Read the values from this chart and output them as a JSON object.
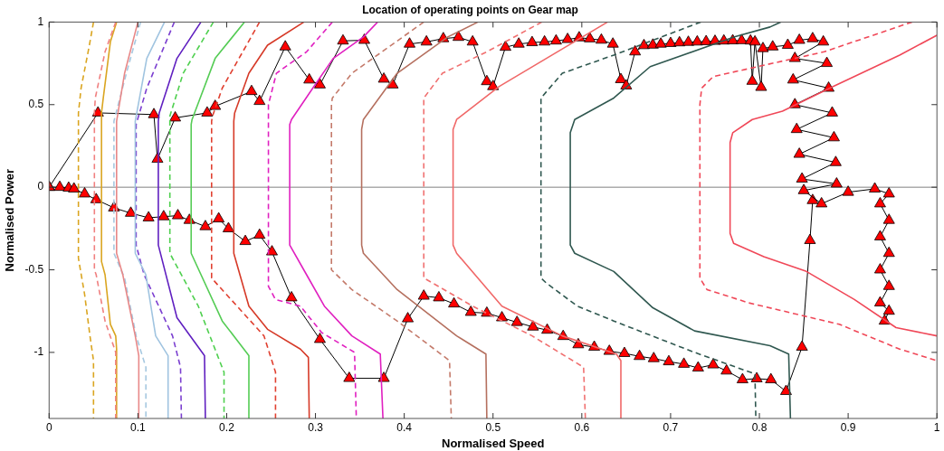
{
  "chart_data": {
    "type": "line",
    "title": "Location of operating points on Gear map",
    "xlabel": "Normalised Speed",
    "ylabel": "Normalised Power",
    "xlim": [
      0,
      1
    ],
    "ylim": [
      -1.4,
      1
    ],
    "xticks": [
      0,
      0.1,
      0.2,
      0.3,
      0.4,
      0.5,
      0.6,
      0.7,
      0.8,
      0.9,
      1
    ],
    "yticks": [
      -1,
      -0.5,
      0,
      0.5,
      1
    ],
    "grid": false,
    "legend": false,
    "marker": "none",
    "ref_lines": [
      {
        "axis": "y",
        "value": 0,
        "color": "#808080"
      }
    ],
    "series": [
      {
        "color": "#daa520",
        "line_style": "dashed",
        "x": [
          0.05,
          0.045,
          0.036,
          0.033,
          0.033,
          0.04,
          0.046,
          0.05,
          0.05
        ],
        "values": [
          1,
          0.85,
          0.6,
          0.45,
          -0.43,
          -0.65,
          -0.9,
          -1.05,
          -1.4
        ]
      },
      {
        "color": "#f08080",
        "line_style": "dashed",
        "x": [
          0.075,
          0.063,
          0.052,
          0.051,
          0.051,
          0.053,
          0.063,
          0.075,
          0.075
        ],
        "values": [
          1,
          0.82,
          0.54,
          0.45,
          -0.5,
          -0.53,
          -0.81,
          -1.0,
          -1.4
        ]
      },
      {
        "color": "#daa520",
        "line_style": "solid",
        "x": [
          0.076,
          0.069,
          0.061,
          0.059,
          0.059,
          0.063,
          0.069,
          0.075,
          0.076,
          0.076
        ],
        "values": [
          1,
          0.88,
          0.54,
          0.45,
          -0.45,
          -0.53,
          -0.83,
          -0.9,
          -0.98,
          -1.4
        ]
      },
      {
        "color": "#e88888",
        "line_style": "solid",
        "x": [
          0.1,
          0.085,
          0.076,
          0.076,
          0.083,
          0.097,
          0.101,
          0.101
        ],
        "values": [
          1,
          0.69,
          0.4,
          -0.4,
          -0.53,
          -0.9,
          -1.02,
          -1.4
        ]
      },
      {
        "color": "#a6c8e0",
        "line_style": "dashed",
        "x": [
          0.103,
          0.087,
          0.073,
          0.073,
          0.085,
          0.098,
          0.109,
          0.109
        ],
        "values": [
          1,
          0.69,
          0.4,
          -0.4,
          -0.55,
          -0.9,
          -1.09,
          -1.4
        ]
      },
      {
        "color": "#a0c4e0",
        "line_style": "solid",
        "x": [
          0.13,
          0.11,
          0.097,
          0.097,
          0.109,
          0.12,
          0.134,
          0.134
        ],
        "values": [
          1,
          0.78,
          0.4,
          -0.4,
          -0.53,
          -0.9,
          -1.02,
          -1.4
        ]
      },
      {
        "color": "#7b3fd0",
        "line_style": "dashed",
        "x": [
          0.141,
          0.11,
          0.098,
          0.098,
          0.107,
          0.139,
          0.148,
          0.149
        ],
        "values": [
          1,
          0.6,
          0.38,
          -0.35,
          -0.53,
          -0.9,
          -1.09,
          -1.4
        ]
      },
      {
        "color": "#6020c0",
        "line_style": "solid",
        "x": [
          0.171,
          0.144,
          0.124,
          0.123,
          0.123,
          0.144,
          0.175,
          0.176
        ],
        "values": [
          1,
          0.78,
          0.45,
          0.4,
          -0.35,
          -0.79,
          -1.02,
          -1.4
        ]
      },
      {
        "color": "#4fd04f",
        "line_style": "dashed",
        "x": [
          0.185,
          0.151,
          0.136,
          0.136,
          0.168,
          0.197,
          0.197
        ],
        "values": [
          1,
          0.69,
          0.43,
          -0.4,
          -0.72,
          -1.12,
          -1.4
        ]
      },
      {
        "color": "#55cc55",
        "line_style": "solid",
        "x": [
          0.22,
          0.187,
          0.161,
          0.16,
          0.16,
          0.195,
          0.225,
          0.225
        ],
        "values": [
          1,
          0.78,
          0.41,
          0.38,
          -0.4,
          -0.81,
          -1.02,
          -1.4
        ]
      },
      {
        "color": "#e04030",
        "line_style": "dashed",
        "x": [
          0.237,
          0.195,
          0.184,
          0.183,
          0.183,
          0.242,
          0.255,
          0.255
        ],
        "values": [
          1,
          0.6,
          0.43,
          0.4,
          -0.55,
          -0.9,
          -1.12,
          -1.4
        ]
      },
      {
        "color": "#d63a28",
        "line_style": "solid",
        "x": [
          0.287,
          0.246,
          0.225,
          0.209,
          0.208,
          0.208,
          0.225,
          0.246,
          0.283,
          0.292,
          0.293
        ],
        "values": [
          1,
          0.86,
          0.69,
          0.45,
          0.4,
          -0.4,
          -0.72,
          -0.86,
          -0.98,
          -1.03,
          -1.4
        ]
      },
      {
        "color": "#e020c0",
        "line_style": "dashed",
        "x": [
          0.319,
          0.29,
          0.256,
          0.247,
          0.247,
          0.255,
          0.283,
          0.307,
          0.344,
          0.346
        ],
        "values": [
          1,
          0.82,
          0.69,
          0.5,
          -0.6,
          -0.68,
          -0.72,
          -0.88,
          -1.0,
          -1.4
        ]
      },
      {
        "color": "#e020c0",
        "line_style": "solid",
        "x": [
          0.37,
          0.354,
          0.32,
          0.297,
          0.273,
          0.271,
          0.271,
          0.29,
          0.31,
          0.341,
          0.373,
          0.376
        ],
        "values": [
          1,
          0.91,
          0.78,
          0.6,
          0.41,
          0.38,
          -0.35,
          -0.53,
          -0.72,
          -0.9,
          -1.01,
          -1.4
        ]
      },
      {
        "color": "#c47a6a",
        "line_style": "dashed",
        "x": [
          0.422,
          0.341,
          0.319,
          0.318,
          0.318,
          0.341,
          0.392,
          0.451,
          0.453
        ],
        "values": [
          1,
          0.69,
          0.54,
          0.5,
          -0.5,
          -0.62,
          -0.81,
          -1.05,
          -1.4
        ]
      },
      {
        "color": "#b5705f",
        "line_style": "solid",
        "x": [
          0.483,
          0.449,
          0.392,
          0.354,
          0.352,
          0.352,
          0.354,
          0.392,
          0.459,
          0.492,
          0.493
        ],
        "values": [
          1,
          0.91,
          0.69,
          0.41,
          0.35,
          -0.35,
          -0.4,
          -0.62,
          -0.9,
          -1.01,
          -1.4
        ]
      },
      {
        "color": "#f07070",
        "line_style": "dashed",
        "x": [
          0.555,
          0.493,
          0.443,
          0.422,
          0.422,
          0.432,
          0.477,
          0.544,
          0.602,
          0.604
        ],
        "values": [
          1,
          0.82,
          0.69,
          0.54,
          -0.55,
          -0.58,
          -0.72,
          -0.9,
          -1.09,
          -1.4
        ]
      },
      {
        "color": "#f06868",
        "line_style": "solid",
        "x": [
          0.629,
          0.507,
          0.459,
          0.455,
          0.455,
          0.459,
          0.51,
          0.578,
          0.639,
          0.644,
          0.644
        ],
        "values": [
          1,
          0.61,
          0.41,
          0.35,
          -0.35,
          -0.4,
          -0.72,
          -0.9,
          -1.01,
          -1.05,
          -1.4
        ]
      },
      {
        "color": "#305850",
        "line_style": "dashed",
        "x": [
          0.734,
          0.636,
          0.578,
          0.554,
          0.554,
          0.56,
          0.595,
          0.636,
          0.727,
          0.795,
          0.796
        ],
        "values": [
          1,
          0.8,
          0.69,
          0.54,
          -0.55,
          -0.58,
          -0.72,
          -0.81,
          -1.0,
          -1.13,
          -1.4
        ]
      },
      {
        "color": "#305850",
        "line_style": "solid",
        "x": [
          0.824,
          0.812,
          0.772,
          0.677,
          0.636,
          0.592,
          0.587,
          0.587,
          0.592,
          0.636,
          0.68,
          0.727,
          0.812,
          0.833,
          0.835
        ],
        "values": [
          1,
          0.97,
          0.91,
          0.73,
          0.54,
          0.41,
          0.33,
          -0.35,
          -0.4,
          -0.51,
          -0.73,
          -0.87,
          -0.96,
          -1.01,
          -1.4
        ]
      },
      {
        "color": "#f04858",
        "line_style": "dashed",
        "x": [
          0.972,
          0.873,
          0.748,
          0.735,
          0.733,
          0.733,
          0.741,
          0.788,
          0.89,
          0.958,
          1.0
        ],
        "values": [
          1,
          0.82,
          0.67,
          0.6,
          0.5,
          -0.55,
          -0.62,
          -0.7,
          -0.83,
          -0.98,
          -1.05
        ]
      },
      {
        "color": "#f04858",
        "line_style": "solid",
        "x": [
          1.0,
          0.958,
          0.883,
          0.826,
          0.792,
          0.77,
          0.767,
          0.767,
          0.771,
          0.805,
          0.853,
          0.907,
          0.954,
          1.0
        ],
        "values": [
          0.92,
          0.8,
          0.61,
          0.46,
          0.41,
          0.33,
          0.27,
          -0.28,
          -0.34,
          -0.42,
          -0.51,
          -0.68,
          -0.85,
          -0.9
        ]
      },
      {
        "color": "#ff0000",
        "marker": "triangle",
        "line_style": "solid",
        "x": [
          0,
          0.055,
          0.118,
          0.122,
          0.142,
          0.178,
          0.187,
          0.228,
          0.237,
          0.266,
          0.293,
          0.305,
          0.331,
          0.355,
          0.377,
          0.387,
          0.406,
          0.425,
          0.444,
          0.461,
          0.477,
          0.493,
          0.5,
          0.514,
          0.529,
          0.544,
          0.558,
          0.571,
          0.584,
          0.597,
          0.609,
          0.622,
          0.635,
          0.644,
          0.65,
          0.66,
          0.67,
          0.68,
          0.689,
          0.7,
          0.71,
          0.72,
          0.73,
          0.74,
          0.75,
          0.76,
          0.77,
          0.78,
          0.79,
          0.792,
          0.795,
          0.802,
          0.804,
          0.815,
          0.832,
          0.845,
          0.86,
          0.872,
          0.84,
          0.876,
          0.838,
          0.878,
          0.84,
          0.882,
          0.842,
          0.884,
          0.845,
          0.886,
          0.848,
          0.887,
          0.85,
          0.87,
          0.9,
          0.93,
          0.946,
          0.936,
          0.946,
          0.936,
          0.946,
          0.936,
          0.946,
          0.936,
          0.946,
          0.941
        ],
        "values": [
          0,
          0.45,
          0.44,
          0.17,
          0.42,
          0.45,
          0.49,
          0.58,
          0.52,
          0.85,
          0.65,
          0.62,
          0.886,
          0.89,
          0.655,
          0.62,
          0.867,
          0.88,
          0.9,
          0.908,
          0.88,
          0.64,
          0.61,
          0.848,
          0.867,
          0.876,
          0.88,
          0.886,
          0.895,
          0.905,
          0.899,
          0.891,
          0.867,
          0.652,
          0.614,
          0.82,
          0.858,
          0.861,
          0.867,
          0.871,
          0.875,
          0.878,
          0.88,
          0.882,
          0.884,
          0.886,
          0.887,
          0.888,
          0.886,
          0.642,
          0.88,
          0.605,
          0.84,
          0.85,
          0.86,
          0.89,
          0.9,
          0.88,
          0.78,
          0.75,
          0.65,
          0.6,
          0.5,
          0.45,
          0.35,
          0.3,
          0.2,
          0.15,
          0.05,
          0.02,
          -0.02,
          -0.1,
          -0.03,
          -0.01,
          -0.04,
          -0.1,
          -0.2,
          -0.3,
          -0.4,
          -0.5,
          -0.6,
          -0.7,
          -0.75,
          -0.81
        ]
      },
      {
        "color": "#ff0000",
        "marker": "triangle",
        "line_style": "solid",
        "x": [
          0,
          0.012,
          0.022,
          0.028,
          0.04,
          0.053,
          0.073,
          0.092,
          0.112,
          0.129,
          0.145,
          0.158,
          0.176,
          0.191,
          0.202,
          0.221,
          0.237,
          0.251,
          0.273,
          0.305,
          0.338,
          0.377,
          0.404,
          0.422,
          0.439,
          0.456,
          0.475,
          0.493,
          0.51,
          0.527,
          0.545,
          0.561,
          0.579,
          0.596,
          0.614,
          0.631,
          0.648,
          0.665,
          0.681,
          0.698,
          0.715,
          0.731,
          0.748,
          0.763,
          0.781,
          0.797,
          0.813,
          0.83,
          0.848,
          0.857,
          0.86
        ],
        "values": [
          0,
          0,
          -0.005,
          -0.01,
          -0.04,
          -0.075,
          -0.125,
          -0.157,
          -0.185,
          -0.178,
          -0.172,
          -0.2,
          -0.238,
          -0.191,
          -0.251,
          -0.328,
          -0.29,
          -0.391,
          -0.669,
          -0.921,
          -1.157,
          -1.157,
          -0.796,
          -0.659,
          -0.669,
          -0.706,
          -0.757,
          -0.762,
          -0.79,
          -0.818,
          -0.846,
          -0.865,
          -0.903,
          -0.953,
          -0.968,
          -0.993,
          -1.006,
          -1.024,
          -1.037,
          -1.056,
          -1.071,
          -1.094,
          -1.075,
          -1.112,
          -1.165,
          -1.159,
          -1.165,
          -1.236,
          -0.968,
          -0.322,
          -0.08
        ]
      }
    ]
  }
}
